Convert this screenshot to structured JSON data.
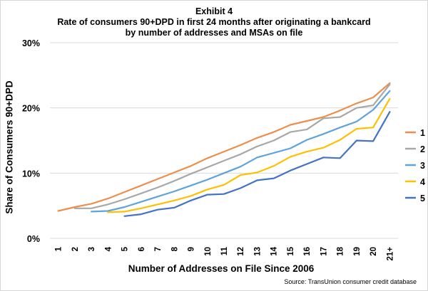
{
  "exhibit": "Exhibit 4",
  "title_line2": "Rate of consumers 90+DPD in first 24 months after originating a bankcard",
  "title_line3": "by number of addresses and MSAs on file",
  "source": "Source: TransUnion consumer credit database",
  "colors": {
    "series_1": "#ED8F4C",
    "series_2": "#A8A8A8",
    "series_3": "#5FA3DA",
    "series_4": "#FFC000",
    "series_5": "#4472C4",
    "grid": "#d9d9d9"
  },
  "chart_data": {
    "type": "line",
    "xlabel": "Number of Addresses on File Since 2006",
    "ylabel": "Share of Consumers 90+DPD",
    "categories": [
      "1",
      "2",
      "3",
      "4",
      "5",
      "6",
      "7",
      "8",
      "9",
      "10",
      "11",
      "12",
      "13",
      "14",
      "15",
      "16",
      "17",
      "18",
      "19",
      "20",
      "21+"
    ],
    "ylim": [
      0,
      30
    ],
    "yticks": [
      0,
      10,
      20,
      30
    ],
    "ytick_labels": [
      "0%",
      "10%",
      "20%",
      "30%"
    ],
    "grid": "horizontal",
    "legend_position": "right",
    "series": [
      {
        "name": "1",
        "values": [
          4.2,
          4.8,
          5.3,
          6.1,
          7.1,
          8.1,
          9.1,
          10.1,
          11.1,
          12.3,
          13.3,
          14.3,
          15.4,
          16.3,
          17.4,
          18.0,
          18.6,
          19.6,
          20.7,
          21.6,
          23.8
        ]
      },
      {
        "name": "2",
        "values": [
          null,
          4.6,
          4.6,
          5.2,
          6.0,
          6.9,
          7.8,
          8.8,
          9.9,
          10.9,
          11.9,
          12.9,
          14.1,
          15.0,
          16.3,
          16.7,
          18.4,
          18.6,
          20.0,
          20.4,
          23.6
        ]
      },
      {
        "name": "3",
        "values": [
          null,
          null,
          4.1,
          4.2,
          4.8,
          5.6,
          6.4,
          7.2,
          8.1,
          9.0,
          10.0,
          11.0,
          12.4,
          13.1,
          13.8,
          15.1,
          16.0,
          17.0,
          17.9,
          19.7,
          22.6
        ]
      },
      {
        "name": "4",
        "values": [
          null,
          null,
          null,
          4.0,
          4.1,
          4.6,
          5.2,
          5.8,
          6.5,
          7.5,
          8.2,
          9.7,
          10.1,
          11.1,
          12.5,
          13.3,
          13.9,
          15.1,
          16.8,
          17.0,
          21.4
        ]
      },
      {
        "name": "5",
        "values": [
          null,
          null,
          null,
          null,
          3.4,
          3.7,
          4.4,
          4.7,
          5.8,
          6.7,
          6.8,
          7.7,
          8.9,
          9.2,
          10.4,
          11.4,
          12.4,
          12.3,
          15.0,
          14.9,
          19.4
        ]
      }
    ]
  }
}
